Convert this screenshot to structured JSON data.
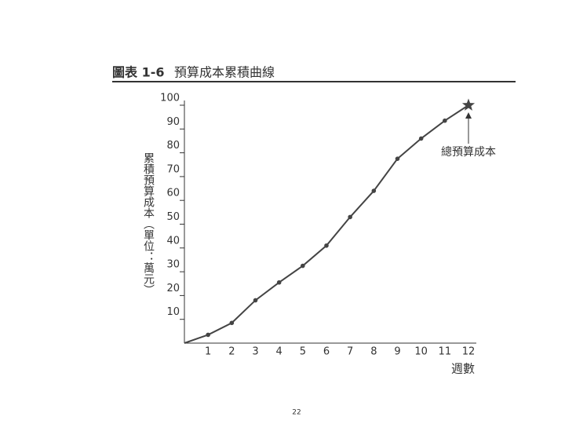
{
  "chart_data": {
    "type": "line",
    "title_label": "圖表 1-6",
    "title": "預算成本累積曲線",
    "y_label": "累積預算成本（單位：萬元）",
    "x_label": "週數",
    "annotation": "總預算成本",
    "page_number": "22",
    "x": [
      0,
      1,
      2,
      3,
      4,
      5,
      6,
      7,
      8,
      9,
      10,
      11,
      12
    ],
    "series": [
      {
        "color": "#444444",
        "values": [
          0,
          3.5,
          8.5,
          18,
          25.5,
          32.5,
          41,
          53,
          64,
          77.5,
          86,
          93.5,
          100
        ]
      }
    ],
    "xlim": [
      0,
      12
    ],
    "xticks": [
      1,
      2,
      3,
      4,
      5,
      6,
      7,
      8,
      9,
      10,
      11,
      12
    ],
    "ylim": [
      0,
      100
    ],
    "yticks": [
      10,
      20,
      30,
      40,
      50,
      60,
      70,
      80,
      90,
      100
    ]
  }
}
